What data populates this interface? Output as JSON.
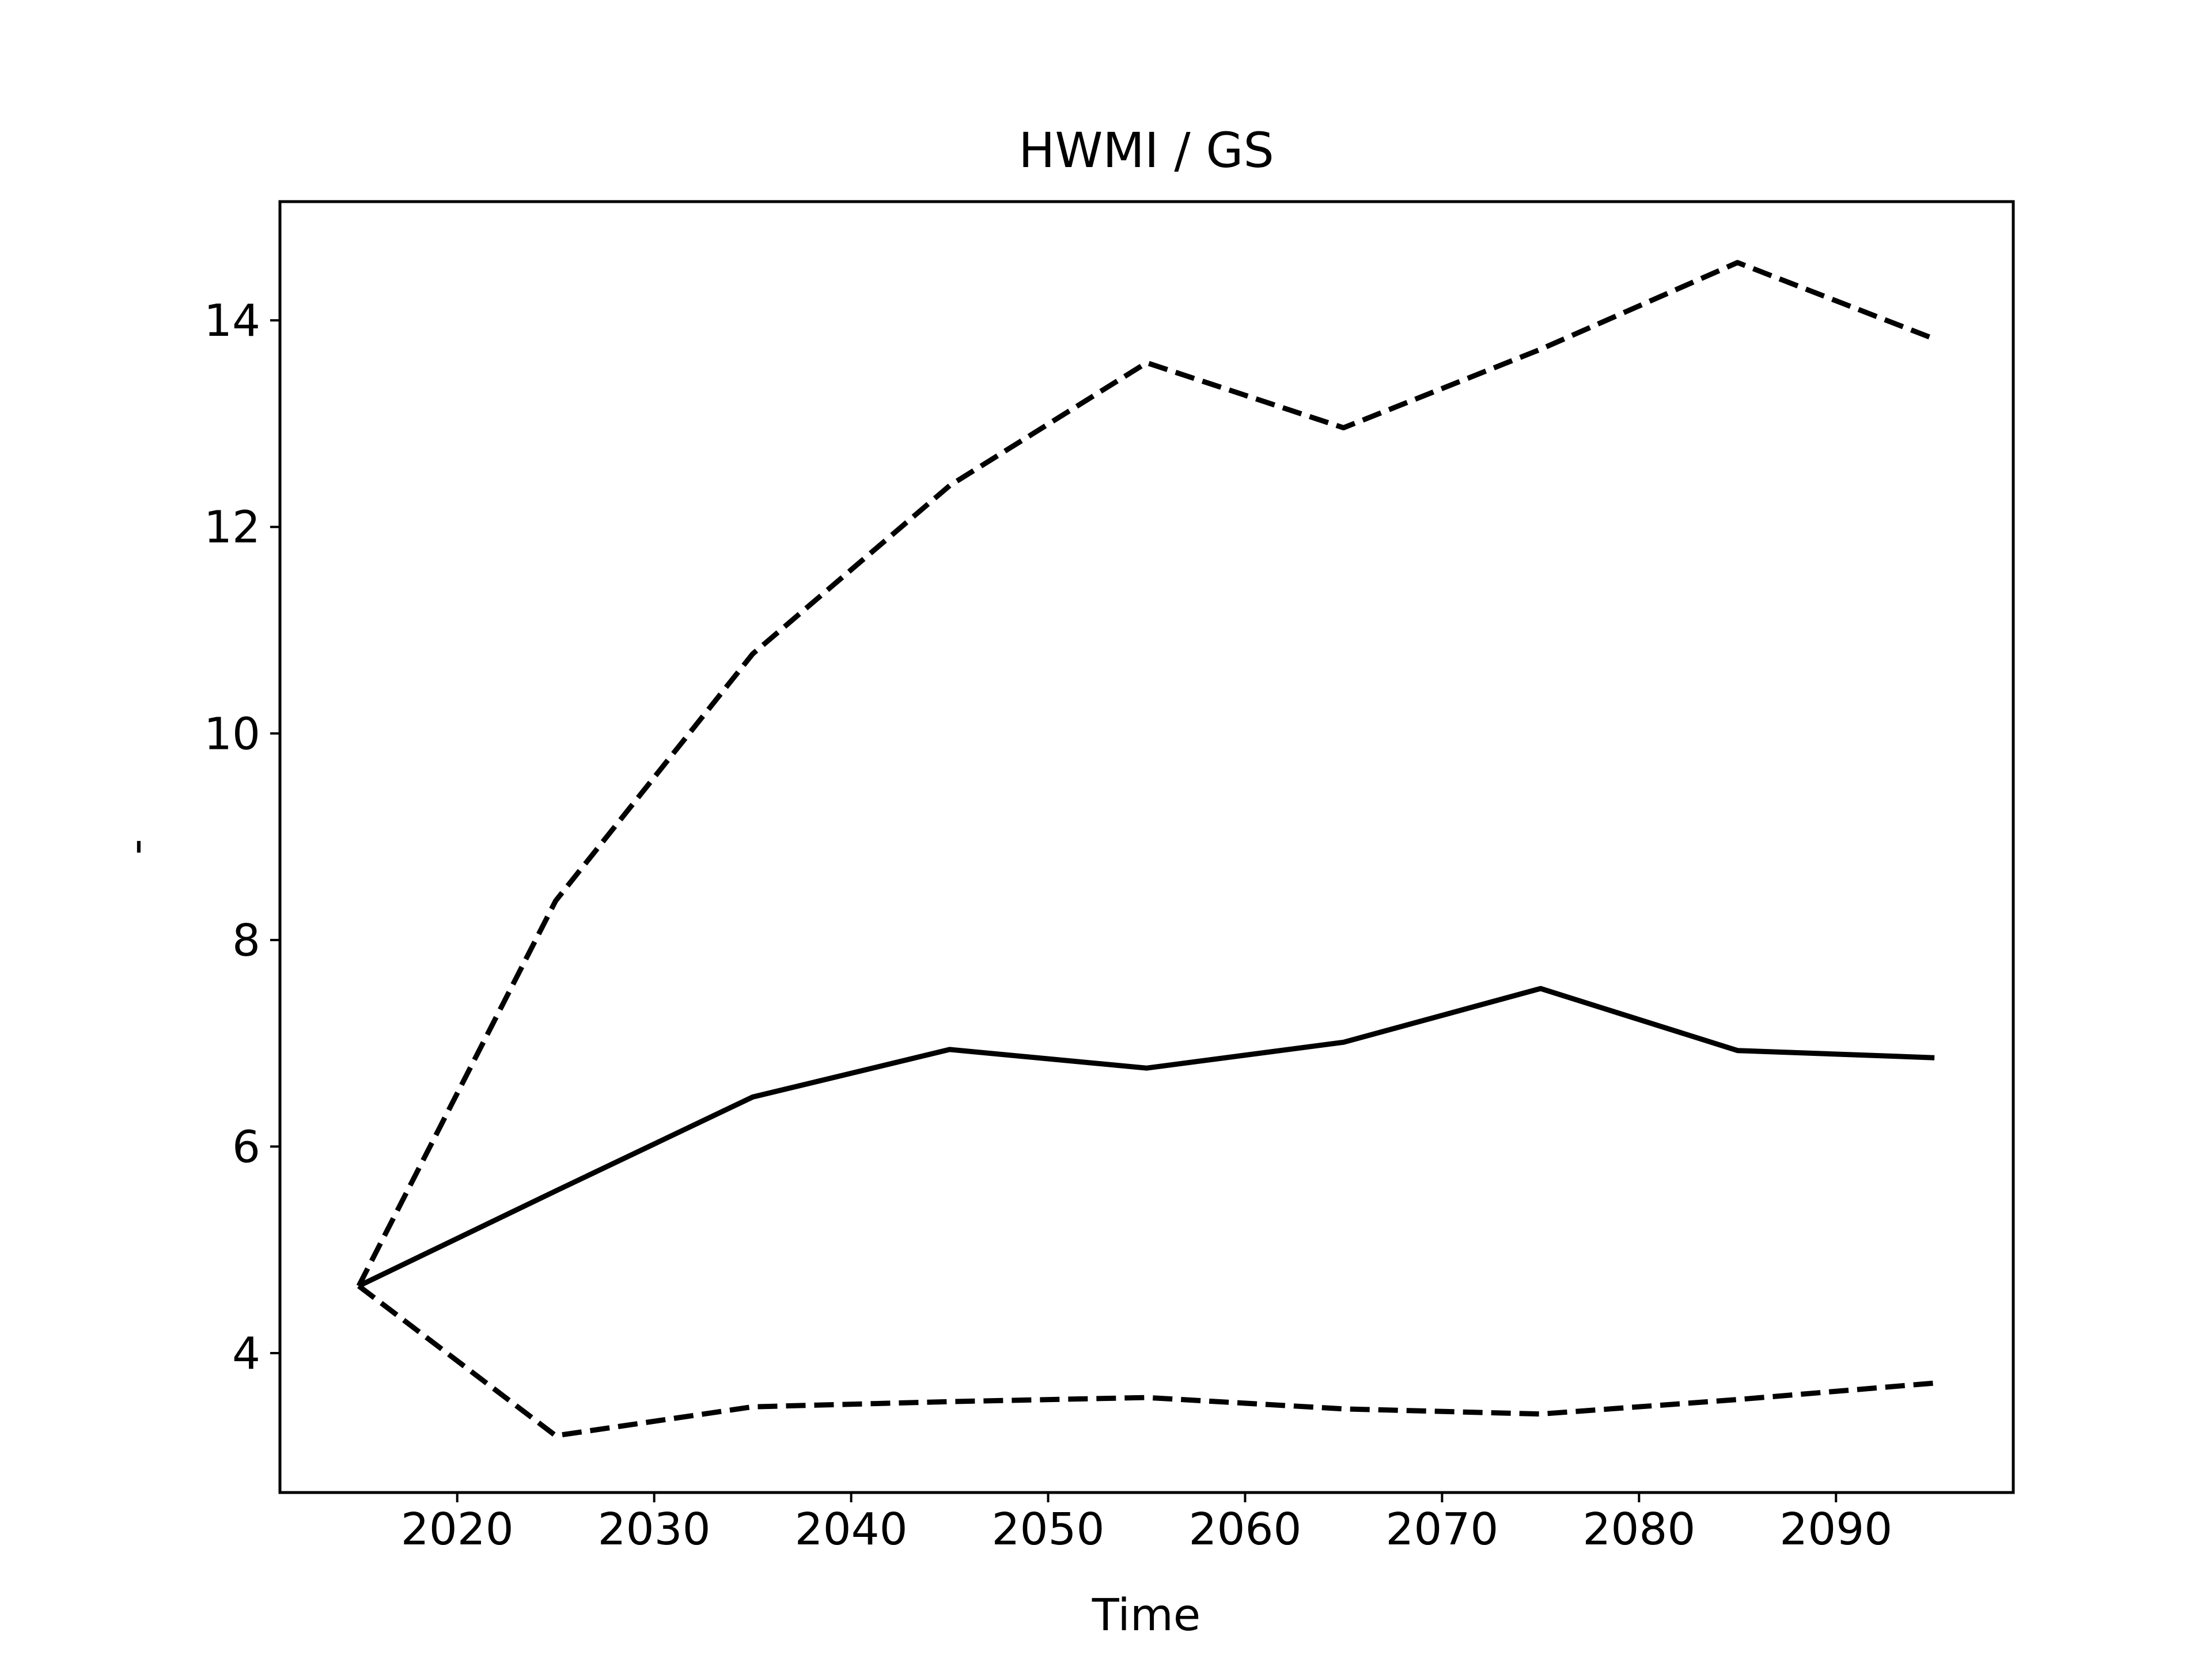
{
  "chart_data": {
    "type": "line",
    "title": "HWMI / GS",
    "xlabel": "Time",
    "ylabel": "-",
    "xlim": [
      2011,
      2099
    ],
    "ylim": [
      2.65,
      15.15
    ],
    "xticks": [
      2020,
      2030,
      2040,
      2050,
      2060,
      2070,
      2080,
      2090
    ],
    "yticks": [
      4,
      6,
      8,
      10,
      12,
      14
    ],
    "grid": false,
    "legend": "none",
    "x": [
      2015,
      2025,
      2035,
      2045,
      2055,
      2065,
      2075,
      2085,
      2095
    ],
    "series": [
      {
        "style": "dashed",
        "color": "#000000",
        "values": [
          4.65,
          8.38,
          10.77,
          12.4,
          13.59,
          12.96,
          13.72,
          14.56,
          13.82
        ]
      },
      {
        "style": "solid",
        "color": "#000000",
        "values": [
          4.65,
          5.57,
          6.48,
          6.94,
          6.76,
          7.01,
          7.53,
          6.93,
          6.86
        ]
      },
      {
        "style": "dashed",
        "color": "#000000",
        "values": [
          4.65,
          3.2,
          3.48,
          3.53,
          3.57,
          3.46,
          3.41,
          3.55,
          3.71
        ]
      }
    ]
  }
}
